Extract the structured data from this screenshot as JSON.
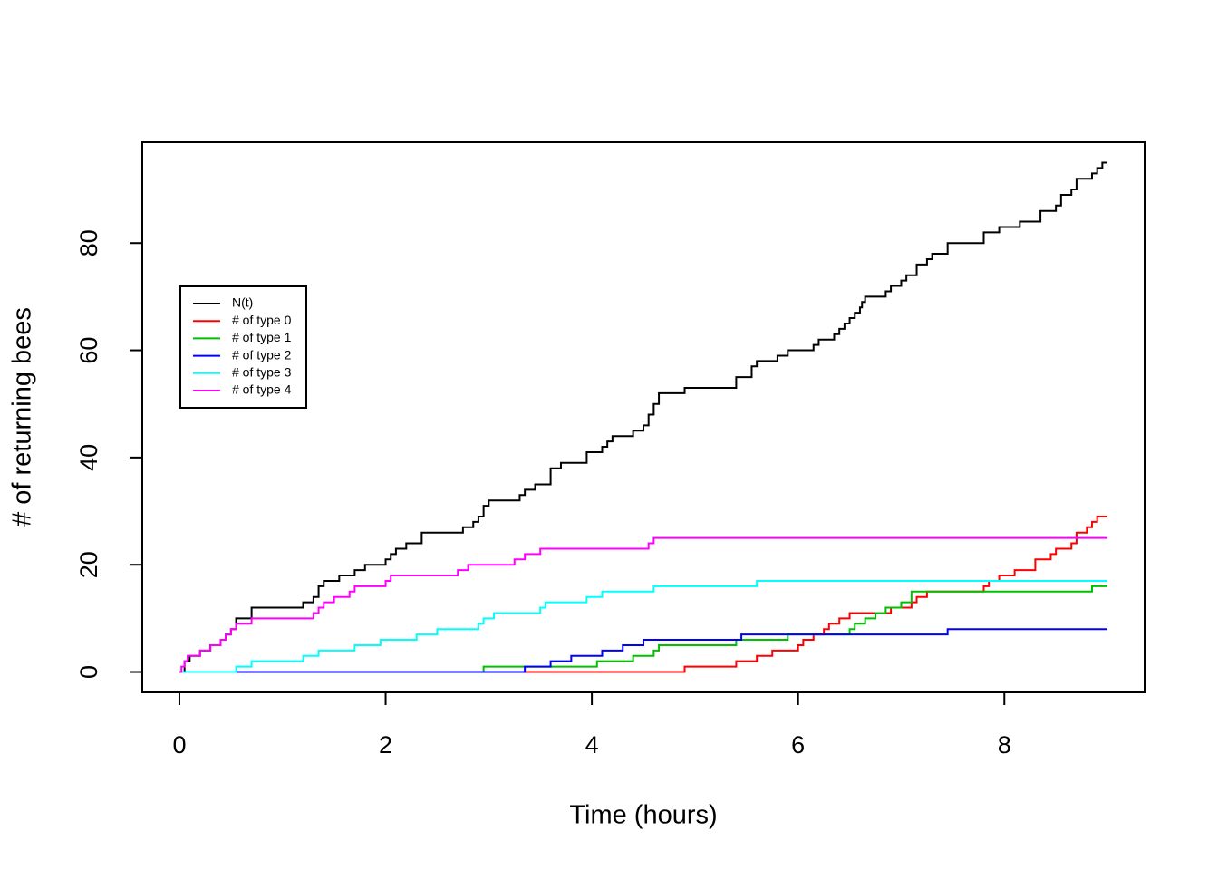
{
  "chart_data": {
    "type": "line",
    "steps": true,
    "x_label": "Time (hours)",
    "y_label": "# of returning bees",
    "xlim": [
      -0.36,
      9.36
    ],
    "ylim": [
      -3.8,
      98.8
    ],
    "xticks": [
      0,
      2,
      4,
      6,
      8
    ],
    "yticks": [
      0,
      20,
      40,
      60,
      80
    ],
    "legend": "left",
    "grid": false,
    "series": [
      {
        "name": "N(t)",
        "color": "#000000",
        "x": [
          0,
          0.05,
          0.1,
          0.2,
          0.3,
          0.4,
          0.45,
          0.5,
          0.55,
          0.7,
          1.2,
          1.3,
          1.35,
          1.4,
          1.55,
          1.7,
          1.8,
          2.0,
          2.05,
          2.1,
          2.2,
          2.35,
          2.75,
          2.85,
          2.9,
          2.95,
          3.0,
          3.3,
          3.35,
          3.45,
          3.6,
          3.7,
          3.95,
          4.1,
          4.15,
          4.2,
          4.4,
          4.5,
          4.55,
          4.6,
          4.65,
          4.9,
          5.4,
          5.55,
          5.6,
          5.8,
          5.9,
          6.15,
          6.2,
          6.35,
          6.4,
          6.45,
          6.5,
          6.55,
          6.6,
          6.62,
          6.65,
          6.85,
          6.9,
          7.0,
          7.05,
          7.15,
          7.25,
          7.3,
          7.45,
          7.8,
          7.95,
          8.15,
          8.35,
          8.5,
          8.55,
          8.65,
          8.7,
          8.85,
          8.9,
          8.95,
          9
        ],
        "values": [
          0,
          2,
          3,
          4,
          5,
          6,
          7,
          8,
          10,
          12,
          13,
          14,
          16,
          17,
          18,
          19,
          20,
          21,
          22,
          23,
          24,
          26,
          27,
          28,
          29,
          31,
          32,
          33,
          34,
          35,
          38,
          39,
          41,
          42,
          43,
          44,
          45,
          46,
          48,
          50,
          52,
          53,
          55,
          57,
          58,
          59,
          60,
          61,
          62,
          63,
          64,
          65,
          66,
          67,
          68,
          69,
          70,
          71,
          72,
          73,
          74,
          76,
          77,
          78,
          80,
          82,
          83,
          84,
          86,
          87,
          89,
          90,
          92,
          93,
          94,
          95,
          95
        ]
      },
      {
        "name": "# of type 0",
        "color": "#ff0000",
        "x": [
          0,
          4.9,
          5.4,
          5.6,
          5.75,
          6.0,
          6.05,
          6.15,
          6.25,
          6.3,
          6.4,
          6.5,
          6.9,
          7.1,
          7.15,
          7.25,
          7.8,
          7.85,
          7.95,
          8.1,
          8.3,
          8.45,
          8.5,
          8.65,
          8.7,
          8.8,
          8.85,
          8.9,
          9
        ],
        "values": [
          0,
          1,
          2,
          3,
          4,
          5,
          6,
          7,
          8,
          9,
          10,
          11,
          12,
          13,
          14,
          15,
          16,
          17,
          18,
          19,
          21,
          22,
          23,
          24,
          26,
          27,
          28,
          29,
          29
        ]
      },
      {
        "name": "# of type 1",
        "color": "#00c000",
        "x": [
          0,
          2.95,
          4.05,
          4.4,
          4.6,
          4.65,
          5.4,
          5.9,
          6.5,
          6.55,
          6.65,
          6.75,
          6.85,
          7.0,
          7.1,
          8.85,
          9
        ],
        "values": [
          0,
          1,
          2,
          3,
          4,
          5,
          6,
          7,
          8,
          9,
          10,
          11,
          12,
          13,
          15,
          16,
          16
        ]
      },
      {
        "name": "# of type 2",
        "color": "#0000ff",
        "x": [
          0,
          3.35,
          3.6,
          3.8,
          4.1,
          4.3,
          4.5,
          5.45,
          7.45,
          9
        ],
        "values": [
          0,
          1,
          2,
          3,
          4,
          5,
          6,
          7,
          8,
          8
        ]
      },
      {
        "name": "# of type 3",
        "color": "#00ffff",
        "x": [
          0,
          0.55,
          0.7,
          1.2,
          1.35,
          1.7,
          1.95,
          2.3,
          2.5,
          2.9,
          2.95,
          3.05,
          3.5,
          3.55,
          3.95,
          4.1,
          4.6,
          5.6,
          9
        ],
        "values": [
          0,
          1,
          2,
          3,
          4,
          5,
          6,
          7,
          8,
          9,
          10,
          11,
          12,
          13,
          14,
          15,
          16,
          17,
          17
        ]
      },
      {
        "name": "# of type 4",
        "color": "#ff00ff",
        "x": [
          0,
          0.02,
          0.05,
          0.08,
          0.2,
          0.3,
          0.4,
          0.45,
          0.5,
          0.55,
          0.7,
          1.3,
          1.35,
          1.4,
          1.5,
          1.65,
          1.7,
          2.0,
          2.05,
          2.7,
          2.8,
          3.25,
          3.35,
          3.5,
          4.55,
          4.6,
          9
        ],
        "values": [
          0,
          1,
          2,
          3,
          4,
          5,
          6,
          7,
          8,
          9,
          10,
          11,
          12,
          13,
          14,
          15,
          16,
          17,
          18,
          19,
          20,
          21,
          22,
          23,
          24,
          25,
          25
        ]
      }
    ]
  }
}
